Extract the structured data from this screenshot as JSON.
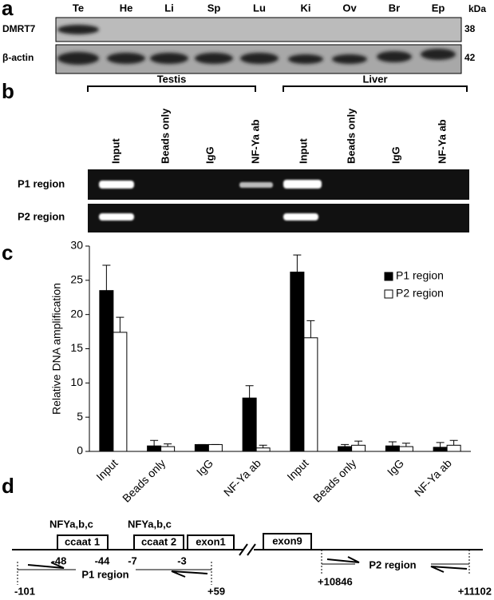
{
  "panel_a": {
    "label": "a",
    "lanes": [
      "Te",
      "He",
      "Li",
      "Sp",
      "Lu",
      "Ki",
      "Ov",
      "Br",
      "Ep"
    ],
    "unit": "kDa",
    "rows": [
      {
        "name": "DMRT7",
        "size": "38"
      },
      {
        "name": "β-actin",
        "size": "42"
      }
    ]
  },
  "panel_b": {
    "label": "b",
    "groups": [
      {
        "name": "Testis",
        "columns": [
          "Input",
          "Beads only",
          "IgG",
          "NF-Ya ab"
        ]
      },
      {
        "name": "Liver",
        "columns": [
          "Input",
          "Beads only",
          "IgG",
          "NF-Ya ab"
        ]
      }
    ],
    "rows": [
      "P1 region",
      "P2 region"
    ]
  },
  "panel_c": {
    "label": "c"
  },
  "chart_data": {
    "type": "bar",
    "ylabel": "Relative DNA amplification",
    "categories": [
      "Input",
      "Beads only",
      "IgG",
      "NF-Ya ab",
      "Input",
      "Beads only",
      "IgG",
      "NF-Ya ab"
    ],
    "series": [
      {
        "name": "P1 region",
        "color": "#000000",
        "values": [
          23.5,
          0.8,
          1.0,
          7.8,
          26.2,
          0.7,
          0.8,
          0.6
        ],
        "errors": [
          3.7,
          0.8,
          0,
          1.8,
          2.5,
          0.3,
          0.6,
          0.7
        ]
      },
      {
        "name": "P2 region",
        "color": "#ffffff",
        "values": [
          17.4,
          0.7,
          1.0,
          0.5,
          16.6,
          0.9,
          0.7,
          0.9
        ],
        "errors": [
          2.2,
          0.4,
          0,
          0.4,
          2.5,
          0.6,
          0.5,
          0.7
        ]
      }
    ],
    "ylim": [
      0,
      30
    ],
    "yticks": [
      0,
      5,
      10,
      15,
      20,
      25,
      30
    ],
    "grid": false,
    "legend": "top-right"
  },
  "panel_d": {
    "label": "d",
    "factor_1": "NFYa,b,c",
    "factor_2": "NFYa,b,c",
    "boxes": [
      "ccaat 1",
      "ccaat 2",
      "exon1",
      "exon9"
    ],
    "positions": [
      "-48",
      "-44",
      "-7",
      "-3"
    ],
    "p1": {
      "name": "P1 region",
      "start": "-101",
      "end": "+59"
    },
    "p2": {
      "name": "P2 region",
      "start": "+10846",
      "end": "+11102"
    }
  }
}
